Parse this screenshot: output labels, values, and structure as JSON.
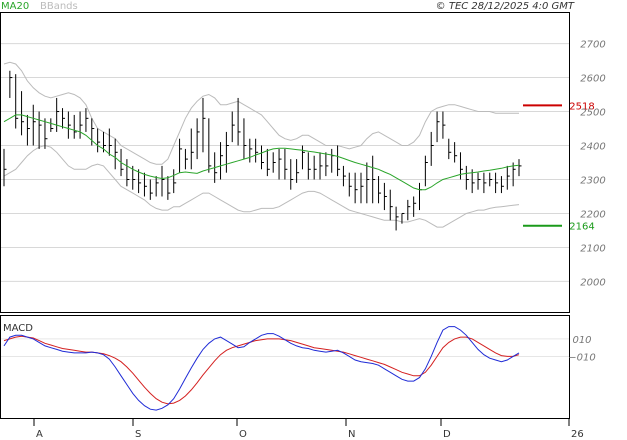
{
  "header": {
    "ma_label": "MA20",
    "bb_label": "BBands",
    "copyright": "© TEC 28/12/2025 4:0 GMT"
  },
  "colors": {
    "ma": "#2aa52a",
    "bands": "#bbbbbb",
    "bars": "#000000",
    "macd": "#1f2bd6",
    "signal": "#d42020",
    "resistance": "#cc0000",
    "support": "#1a9a1a",
    "grid": "#d8d8d8"
  },
  "chart_data": [
    {
      "type": "ohlc",
      "y_ticks": [
        2000,
        2100,
        2200,
        2300,
        2400,
        2500,
        2600,
        2700
      ],
      "y_tick_labels": [
        "2000",
        "2100",
        "2200",
        "2300",
        "2400",
        "2500",
        "2600",
        "2700"
      ],
      "ylim": [
        1910,
        2790
      ],
      "x_months": [
        "A",
        "S",
        "O",
        "N",
        "D",
        "26"
      ],
      "levels": [
        {
          "name": "resistance",
          "value": 2518,
          "label": "2518"
        },
        {
          "name": "support",
          "value": 2164,
          "label": "2164"
        }
      ],
      "highs": [
        2390,
        2620,
        2610,
        2560,
        2490,
        2520,
        2500,
        2480,
        2480,
        2540,
        2510,
        2500,
        2490,
        2500,
        2510,
        2480,
        2450,
        2440,
        2450,
        2420,
        2390,
        2360,
        2340,
        2330,
        2320,
        2300,
        2310,
        2340,
        2310,
        2330,
        2420,
        2390,
        2450,
        2480,
        2540,
        2480,
        2380,
        2410,
        2440,
        2500,
        2540,
        2480,
        2420,
        2420,
        2400,
        2390,
        2380,
        2390,
        2390,
        2360,
        2360,
        2400,
        2380,
        2370,
        2380,
        2380,
        2390,
        2400,
        2340,
        2320,
        2320,
        2320,
        2350,
        2370,
        2310,
        2290,
        2270,
        2220,
        2200,
        2240,
        2250,
        2290,
        2370,
        2440,
        2500,
        2500,
        2420,
        2410,
        2380,
        2340,
        2330,
        2320,
        2320,
        2320,
        2320,
        2310,
        2340,
        2350,
        2360
      ],
      "lows": [
        2280,
        2540,
        2450,
        2430,
        2400,
        2400,
        2390,
        2390,
        2440,
        2440,
        2450,
        2420,
        2420,
        2420,
        2440,
        2400,
        2380,
        2380,
        2370,
        2330,
        2310,
        2280,
        2270,
        2260,
        2250,
        2240,
        2250,
        2250,
        2240,
        2260,
        2320,
        2330,
        2330,
        2360,
        2380,
        2320,
        2290,
        2300,
        2320,
        2410,
        2400,
        2360,
        2350,
        2350,
        2330,
        2310,
        2320,
        2300,
        2300,
        2270,
        2290,
        2330,
        2300,
        2300,
        2300,
        2310,
        2320,
        2310,
        2280,
        2250,
        2230,
        2230,
        2230,
        2230,
        2230,
        2210,
        2180,
        2150,
        2170,
        2180,
        2190,
        2210,
        2280,
        2340,
        2410,
        2420,
        2360,
        2350,
        2300,
        2270,
        2260,
        2270,
        2260,
        2280,
        2260,
        2260,
        2270,
        2280,
        2310
      ],
      "closes": [
        2330,
        2600,
        2480,
        2470,
        2450,
        2470,
        2460,
        2420,
        2450,
        2500,
        2480,
        2460,
        2440,
        2460,
        2480,
        2450,
        2410,
        2400,
        2400,
        2380,
        2330,
        2300,
        2300,
        2290,
        2280,
        2260,
        2290,
        2300,
        2260,
        2290,
        2390,
        2360,
        2380,
        2440,
        2480,
        2340,
        2320,
        2370,
        2400,
        2460,
        2440,
        2400,
        2390,
        2380,
        2350,
        2330,
        2350,
        2360,
        2330,
        2300,
        2320,
        2380,
        2330,
        2330,
        2340,
        2340,
        2370,
        2330,
        2310,
        2280,
        2270,
        2280,
        2300,
        2300,
        2260,
        2250,
        2220,
        2190,
        2200,
        2220,
        2230,
        2270,
        2350,
        2400,
        2470,
        2460,
        2380,
        2370,
        2330,
        2300,
        2290,
        2300,
        2290,
        2300,
        2290,
        2280,
        2310,
        2330,
        2340
      ],
      "ma20": [
        2470,
        2480,
        2490,
        2490,
        2485,
        2480,
        2475,
        2470,
        2465,
        2460,
        2455,
        2450,
        2445,
        2440,
        2430,
        2415,
        2400,
        2390,
        2375,
        2365,
        2350,
        2340,
        2330,
        2322,
        2315,
        2310,
        2306,
        2303,
        2305,
        2312,
        2320,
        2322,
        2320,
        2318,
        2325,
        2330,
        2335,
        2340,
        2345,
        2350,
        2355,
        2360,
        2365,
        2372,
        2378,
        2385,
        2390,
        2392,
        2392,
        2390,
        2388,
        2386,
        2383,
        2381,
        2378,
        2375,
        2372,
        2368,
        2362,
        2356,
        2350,
        2345,
        2340,
        2335,
        2330,
        2322,
        2315,
        2305,
        2295,
        2285,
        2275,
        2270,
        2270,
        2278,
        2290,
        2300,
        2305,
        2310,
        2315,
        2318,
        2320,
        2322,
        2325,
        2327,
        2330,
        2333,
        2337,
        2340,
        2342
      ],
      "bb_upper": [
        2640,
        2645,
        2640,
        2620,
        2590,
        2570,
        2555,
        2545,
        2540,
        2545,
        2550,
        2555,
        2550,
        2540,
        2520,
        2480,
        2450,
        2440,
        2430,
        2420,
        2400,
        2390,
        2380,
        2370,
        2360,
        2350,
        2345,
        2345,
        2360,
        2400,
        2440,
        2480,
        2510,
        2530,
        2545,
        2550,
        2540,
        2520,
        2520,
        2525,
        2530,
        2520,
        2510,
        2500,
        2490,
        2470,
        2450,
        2430,
        2420,
        2415,
        2420,
        2430,
        2430,
        2420,
        2410,
        2400,
        2400,
        2400,
        2395,
        2390,
        2395,
        2400,
        2420,
        2435,
        2440,
        2430,
        2420,
        2410,
        2400,
        2400,
        2410,
        2430,
        2470,
        2500,
        2510,
        2515,
        2520,
        2520,
        2515,
        2510,
        2505,
        2500,
        2500,
        2500,
        2495,
        2495,
        2495,
        2495,
        2495
      ],
      "bb_lower": [
        2310,
        2320,
        2330,
        2350,
        2370,
        2385,
        2395,
        2400,
        2395,
        2380,
        2360,
        2340,
        2330,
        2330,
        2330,
        2340,
        2345,
        2340,
        2320,
        2300,
        2280,
        2270,
        2260,
        2250,
        2240,
        2225,
        2215,
        2210,
        2210,
        2220,
        2220,
        2230,
        2240,
        2250,
        2260,
        2260,
        2250,
        2240,
        2230,
        2220,
        2210,
        2205,
        2205,
        2210,
        2215,
        2215,
        2215,
        2220,
        2230,
        2240,
        2250,
        2260,
        2265,
        2265,
        2260,
        2250,
        2240,
        2230,
        2220,
        2210,
        2205,
        2200,
        2195,
        2190,
        2185,
        2180,
        2180,
        2180,
        2175,
        2175,
        2180,
        2185,
        2180,
        2170,
        2160,
        2160,
        2170,
        2180,
        2190,
        2200,
        2205,
        2210,
        2210,
        2215,
        2218,
        2220,
        2222,
        2224,
        2226
      ],
      "macd": [
        2,
        12,
        14,
        14,
        12,
        10,
        6,
        2,
        0,
        -2,
        -4,
        -5,
        -6,
        -6,
        -6,
        -5,
        -6,
        -8,
        -13,
        -22,
        -32,
        -42,
        -52,
        -60,
        -66,
        -70,
        -71,
        -69,
        -65,
        -58,
        -47,
        -35,
        -23,
        -12,
        -2,
        5,
        10,
        12,
        8,
        4,
        0,
        1,
        6,
        10,
        14,
        16,
        16,
        13,
        9,
        5,
        2,
        0,
        -1,
        -3,
        -4,
        -5,
        -4,
        -3,
        -6,
        -10,
        -14,
        -16,
        -17,
        -18,
        -20,
        -24,
        -28,
        -32,
        -36,
        -38,
        -38,
        -34,
        -24,
        -10,
        6,
        20,
        24,
        24,
        20,
        14,
        6,
        -2,
        -8,
        -12,
        -14,
        -16,
        -14,
        -10,
        -6
      ],
      "signal": [
        8,
        10,
        12,
        13,
        12,
        11,
        8,
        5,
        3,
        1,
        -1,
        -2,
        -3,
        -4,
        -5,
        -5,
        -6,
        -7,
        -9,
        -12,
        -16,
        -22,
        -29,
        -37,
        -45,
        -52,
        -58,
        -62,
        -64,
        -63,
        -60,
        -55,
        -48,
        -40,
        -31,
        -23,
        -15,
        -8,
        -3,
        0,
        2,
        4,
        6,
        8,
        9,
        10,
        10,
        10,
        9,
        8,
        6,
        4,
        2,
        0,
        -1,
        -2,
        -3,
        -4,
        -5,
        -7,
        -9,
        -11,
        -13,
        -15,
        -17,
        -19,
        -22,
        -25,
        -28,
        -30,
        -32,
        -32,
        -28,
        -20,
        -10,
        0,
        6,
        10,
        12,
        12,
        10,
        6,
        2,
        -2,
        -6,
        -9,
        -10,
        -10,
        -8
      ],
      "macd_ticks": [
        10,
        -10
      ],
      "macd_tick_labels": [
        "010",
        "−010"
      ],
      "macd_ylim": [
        -80,
        36
      ]
    }
  ]
}
